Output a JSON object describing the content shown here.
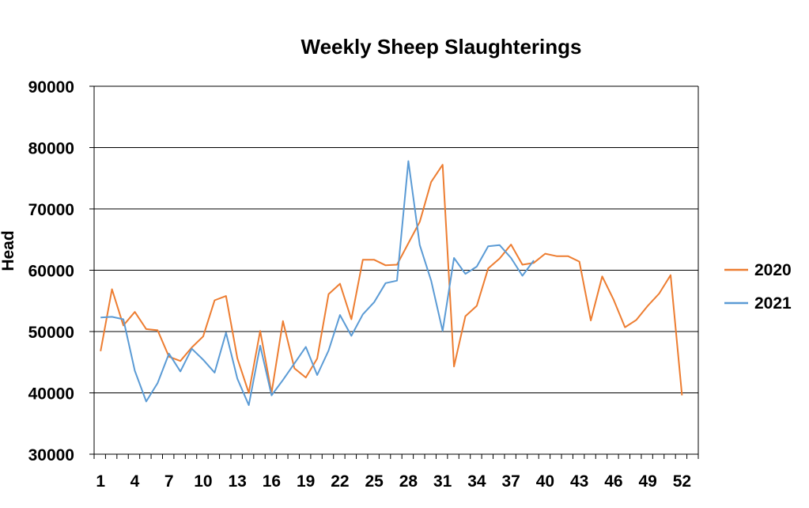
{
  "chart_data": {
    "type": "line",
    "title": "Weekly Sheep Slaughterings",
    "xlabel": "",
    "ylabel": "Head",
    "ylim": [
      30000,
      90000
    ],
    "yticks": [
      30000,
      40000,
      50000,
      60000,
      70000,
      80000,
      90000
    ],
    "xlim": [
      1,
      52
    ],
    "xticks": [
      1,
      4,
      7,
      10,
      13,
      16,
      19,
      22,
      25,
      28,
      31,
      34,
      37,
      40,
      43,
      46,
      49,
      52
    ],
    "grid": "horizontal",
    "legend_position": "right",
    "series": [
      {
        "name": "2020",
        "color": "#ED7D31",
        "x": [
          1,
          2,
          3,
          4,
          5,
          6,
          7,
          8,
          9,
          10,
          11,
          12,
          13,
          14,
          15,
          16,
          17,
          18,
          19,
          20,
          21,
          22,
          23,
          24,
          25,
          26,
          27,
          28,
          29,
          30,
          31,
          32,
          33,
          34,
          35,
          36,
          37,
          38,
          39,
          40,
          41,
          42,
          43,
          44,
          45,
          46,
          47,
          48,
          49,
          50,
          51,
          52
        ],
        "values": [
          46800,
          56900,
          51000,
          53200,
          50400,
          50200,
          45900,
          45200,
          47400,
          49200,
          55100,
          55800,
          45600,
          40000,
          50100,
          40000,
          51700,
          44000,
          42500,
          45600,
          56100,
          57800,
          52000,
          61700,
          61700,
          60800,
          60900,
          64400,
          67900,
          74400,
          77200,
          44300,
          52500,
          54200,
          60300,
          61900,
          64200,
          60900,
          61200,
          62700,
          62300,
          62300,
          61400,
          51800,
          59000,
          55200,
          50700,
          51900,
          54200,
          56200,
          59200,
          39600
        ]
      },
      {
        "name": "2021",
        "color": "#5B9BD5",
        "x": [
          1,
          2,
          3,
          4,
          5,
          6,
          7,
          8,
          9,
          10,
          11,
          12,
          13,
          14,
          15,
          16,
          17,
          18,
          19,
          20,
          21,
          22,
          23,
          24,
          25,
          26,
          27,
          28,
          29,
          30,
          31,
          32,
          33,
          34,
          35,
          36,
          37,
          38,
          39
        ],
        "values": [
          52300,
          52400,
          52000,
          43600,
          38600,
          41600,
          46400,
          43500,
          47200,
          45400,
          43300,
          49800,
          42300,
          38000,
          47700,
          39600,
          42100,
          44800,
          47500,
          42900,
          46900,
          52700,
          49300,
          52800,
          54800,
          57900,
          58300,
          77800,
          64100,
          58300,
          50100,
          62000,
          59400,
          60600,
          63900,
          64100,
          62000,
          59100,
          61600
        ]
      }
    ]
  }
}
